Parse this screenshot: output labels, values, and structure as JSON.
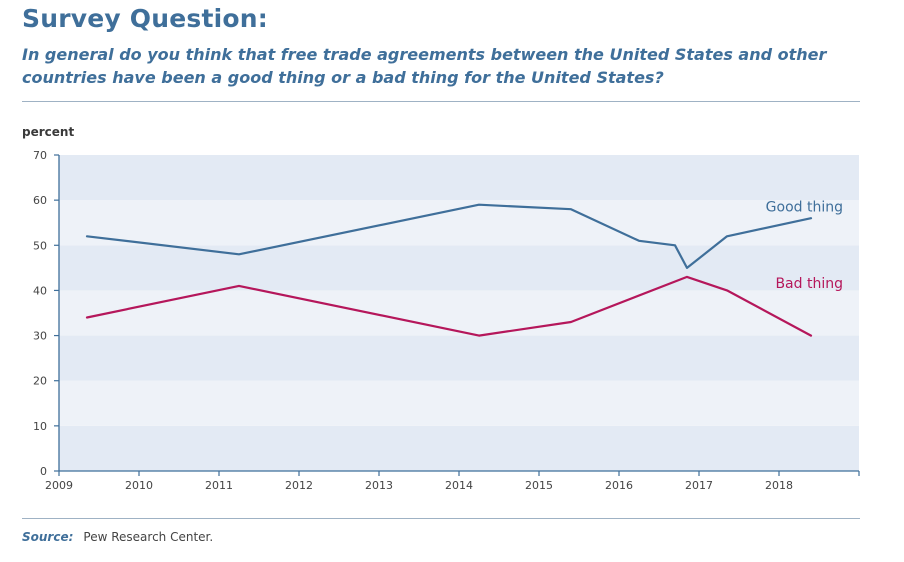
{
  "header": {
    "title": "Survey Question:",
    "question": "In general do you think that free trade agreements between the United States and other countries have been a good thing or a bad thing for the United States?"
  },
  "source": {
    "label": "Source:",
    "text": "Pew Research Center."
  },
  "chart_data": {
    "type": "line",
    "ylabel": "percent",
    "xlabel": "",
    "ylim": [
      0,
      70
    ],
    "xlim": [
      2009,
      2019
    ],
    "yticks": [
      0,
      10,
      20,
      30,
      40,
      50,
      60,
      70
    ],
    "xticks": [
      2009,
      2010,
      2011,
      2012,
      2013,
      2014,
      2015,
      2016,
      2017,
      2018
    ],
    "banded_background": true,
    "legend": "inline labels at right end of lines",
    "series": [
      {
        "name": "Good thing",
        "color": "#3f6f9a",
        "points": [
          {
            "x": 2009.35,
            "y": 52
          },
          {
            "x": 2011.25,
            "y": 48
          },
          {
            "x": 2014.25,
            "y": 59
          },
          {
            "x": 2015.4,
            "y": 58
          },
          {
            "x": 2016.25,
            "y": 51
          },
          {
            "x": 2016.7,
            "y": 50
          },
          {
            "x": 2016.85,
            "y": 45
          },
          {
            "x": 2017.35,
            "y": 52
          },
          {
            "x": 2018.4,
            "y": 56
          }
        ]
      },
      {
        "name": "Bad thing",
        "color": "#b5175b",
        "points": [
          {
            "x": 2009.35,
            "y": 34
          },
          {
            "x": 2011.25,
            "y": 41
          },
          {
            "x": 2014.25,
            "y": 30
          },
          {
            "x": 2015.4,
            "y": 33
          },
          {
            "x": 2016.85,
            "y": 43
          },
          {
            "x": 2017.35,
            "y": 40
          },
          {
            "x": 2018.4,
            "y": 30
          }
        ]
      }
    ]
  }
}
